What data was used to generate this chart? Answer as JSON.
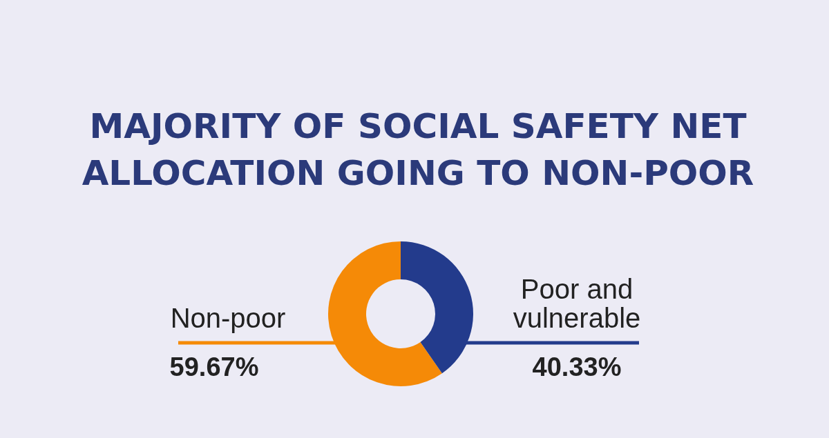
{
  "chart_data": {
    "type": "donut",
    "title": "MAJORITY OF SOCIAL SAFETY NET\nALLOCATION GOING TO NON-POOR",
    "categories": [
      "Non-poor",
      "Poor and vulnerable"
    ],
    "values": [
      59.67,
      40.33
    ],
    "colors": [
      "#f58a07",
      "#233b8c"
    ],
    "value_labels": [
      "59.67%",
      "40.33%"
    ]
  }
}
